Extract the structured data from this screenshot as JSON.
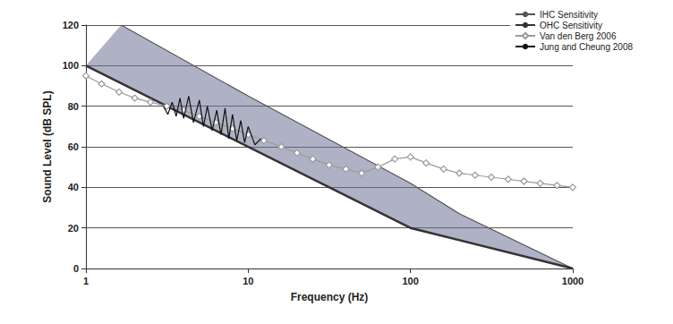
{
  "chart_data": {
    "type": "line",
    "x_label": "Frequency (Hz)",
    "y_label": "Sound Level (dB SPL)",
    "log": "x",
    "grid": true,
    "legend": "top-right",
    "xlim": [
      1,
      1000
    ],
    "xticks": [
      1,
      10,
      100,
      1000
    ],
    "ylim": [
      0,
      120
    ],
    "yticks": [
      0,
      20,
      40,
      60,
      80,
      100,
      120
    ],
    "series": [
      {
        "name": "IHC Sensitivity",
        "color": "#555555",
        "line_style": "solid",
        "x": [
          1.65,
          10,
          100,
          200,
          1000
        ],
        "values": [
          120,
          85,
          42,
          27,
          0
        ]
      },
      {
        "name": "OHC Sensitivity",
        "color": "#333333",
        "line_style": "solid",
        "x": [
          1,
          100,
          1000
        ],
        "values": [
          100,
          20,
          0
        ]
      },
      {
        "name": "Van den Berg 2006",
        "color": "#9a9a9a",
        "marker": "diamond",
        "line_style": "solid",
        "x": [
          1,
          1.25,
          1.6,
          2,
          2.5,
          3.15,
          4,
          5,
          6.3,
          8,
          10,
          12.5,
          16,
          20,
          25,
          31.5,
          40,
          50,
          63,
          80,
          100,
          125,
          160,
          200,
          250,
          315,
          400,
          500,
          630,
          800,
          1000
        ],
        "values": [
          95,
          91,
          87,
          84,
          82,
          80,
          78,
          75,
          72,
          69,
          66,
          63,
          60,
          57,
          54,
          51,
          49,
          47,
          50,
          54,
          55,
          52,
          49,
          47,
          46,
          45,
          44,
          43,
          42,
          41,
          40
        ]
      },
      {
        "name": "Jung and Cheung 2008",
        "color": "#111111",
        "line_style": "solid",
        "x": [
          3,
          3.2,
          3.4,
          3.6,
          3.8,
          4,
          4.3,
          4.6,
          5,
          5.3,
          5.6,
          6,
          6.4,
          6.8,
          7.2,
          7.6,
          8,
          8.5,
          9,
          9.5,
          10,
          11,
          12
        ],
        "values": [
          80,
          76,
          82,
          75,
          84,
          74,
          85,
          72,
          83,
          70,
          80,
          68,
          78,
          66,
          79,
          64,
          76,
          63,
          73,
          62,
          70,
          61,
          64
        ]
      }
    ]
  }
}
